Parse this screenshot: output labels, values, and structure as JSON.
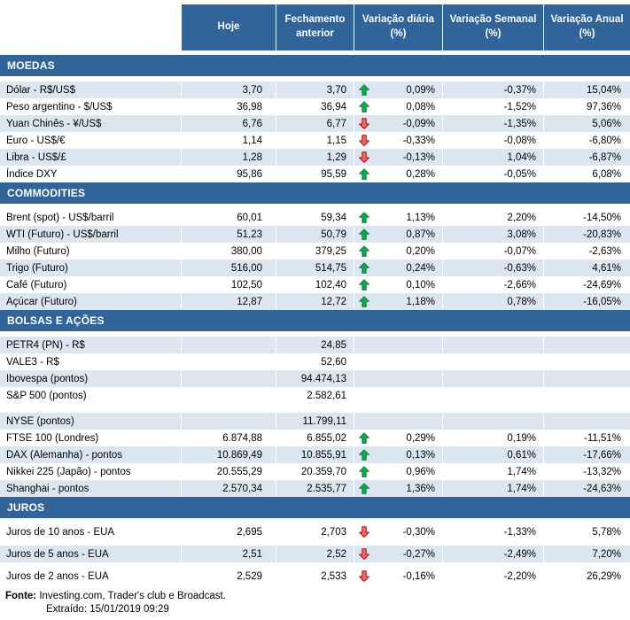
{
  "colors": {
    "header_blue": "#30649B",
    "row_shade": "#DCE6F1",
    "arrow_up_fill": "#00B050",
    "arrow_up_border": "#1E7B34",
    "arrow_down_fill": "#EF6A6A",
    "arrow_down_border": "#C00000"
  },
  "icons": {
    "up_arrow": "block-arrow-up-green",
    "down_arrow": "block-arrow-down-red"
  },
  "header": {
    "columns": [
      "Hoje",
      "Fechamento anterior",
      "Variação diária (%)",
      "Variação Semanal (%)",
      "Variação Anual (%)"
    ]
  },
  "sections": [
    {
      "title": "MOEDAS",
      "rows": [
        {
          "label": "Dólar - R$/US$",
          "hoje": "3,70",
          "fechamento": "3,70",
          "arrow": "up",
          "diaria": "0,09%",
          "semanal": "-0,37%",
          "anual": "15,04%",
          "shade": true
        },
        {
          "label": "Peso argentino - $/US$",
          "hoje": "36,98",
          "fechamento": "36,94",
          "arrow": "up",
          "diaria": "0,08%",
          "semanal": "-1,52%",
          "anual": "97,36%",
          "shade": false
        },
        {
          "label": "Yuan Chinês - ¥/US$",
          "hoje": "6,76",
          "fechamento": "6,77",
          "arrow": "down",
          "diaria": "-0,09%",
          "semanal": "-1,35%",
          "anual": "5,06%",
          "shade": true
        },
        {
          "label": "Euro - US$/€",
          "hoje": "1,14",
          "fechamento": "1,15",
          "arrow": "down",
          "diaria": "-0,33%",
          "semanal": "-0,08%",
          "anual": "-6,80%",
          "shade": false
        },
        {
          "label": "Libra - US$/£",
          "hoje": "1,28",
          "fechamento": "1,29",
          "arrow": "down",
          "diaria": "-0,13%",
          "semanal": "1,04%",
          "anual": "-6,87%",
          "shade": true
        },
        {
          "label": "Índice DXY",
          "hoje": "95,86",
          "fechamento": "95,59",
          "arrow": "up",
          "diaria": "0,28%",
          "semanal": "-0,05%",
          "anual": "6,08%",
          "shade": false
        }
      ]
    },
    {
      "title": "COMMODITIES",
      "rows": [
        {
          "label": "Brent (spot) - US$/barril",
          "hoje": "60,01",
          "fechamento": "59,34",
          "arrow": "up",
          "diaria": "1,13%",
          "semanal": "2,20%",
          "anual": "-14,50%",
          "shade": false
        },
        {
          "label": "WTI (Futuro) - US$/barril",
          "hoje": "51,23",
          "fechamento": "50,79",
          "arrow": "up",
          "diaria": "0,87%",
          "semanal": "3,08%",
          "anual": "-20,83%",
          "shade": true
        },
        {
          "label": "Milho (Futuro)",
          "hoje": "380,00",
          "fechamento": "379,25",
          "arrow": "up",
          "diaria": "0,20%",
          "semanal": "-0,07%",
          "anual": "-2,63%",
          "shade": false
        },
        {
          "label": "Trigo (Futuro)",
          "hoje": "516,00",
          "fechamento": "514,75",
          "arrow": "up",
          "diaria": "0,24%",
          "semanal": "-0,63%",
          "anual": "4,61%",
          "shade": true
        },
        {
          "label": "Café (Futuro)",
          "hoje": "102,50",
          "fechamento": "102,40",
          "arrow": "up",
          "diaria": "0,10%",
          "semanal": "-2,66%",
          "anual": "-24,69%",
          "shade": false
        },
        {
          "label": "Açúcar (Futuro)",
          "hoje": "12,87",
          "fechamento": "12,72",
          "arrow": "up",
          "diaria": "1,18%",
          "semanal": "0,78%",
          "anual": "-16,05%",
          "shade": true
        }
      ]
    },
    {
      "title": "BOLSAS E AÇÕES",
      "rows": [
        {
          "label": "PETR4 (PN) - R$",
          "hoje": "",
          "fechamento": "24,85",
          "arrow": null,
          "diaria": "",
          "semanal": "",
          "anual": "",
          "shade": true
        },
        {
          "label": "VALE3 - R$",
          "hoje": "",
          "fechamento": "52,60",
          "arrow": null,
          "diaria": "",
          "semanal": "",
          "anual": "",
          "shade": false
        },
        {
          "label": "Ibovespa (pontos)",
          "hoje": "",
          "fechamento": "94.474,13",
          "arrow": null,
          "diaria": "",
          "semanal": "",
          "anual": "",
          "shade": true
        },
        {
          "label": "S&P 500 (pontos)",
          "hoje": "",
          "fechamento": "2.582,61",
          "arrow": null,
          "diaria": "",
          "semanal": "",
          "anual": "",
          "shade": false,
          "gap_after": true
        },
        {
          "label": "NYSE (pontos)",
          "hoje": "",
          "fechamento": "11.799,11",
          "arrow": null,
          "diaria": "",
          "semanal": "",
          "anual": "",
          "shade": true
        },
        {
          "label": "FTSE 100 (Londres)",
          "hoje": "6.874,88",
          "fechamento": "6.855,02",
          "arrow": "up",
          "diaria": "0,29%",
          "semanal": "0,19%",
          "anual": "-11,51%",
          "shade": false
        },
        {
          "label": "DAX (Alemanha) - pontos",
          "hoje": "10.869,49",
          "fechamento": "10.855,91",
          "arrow": "up",
          "diaria": "0,13%",
          "semanal": "0,61%",
          "anual": "-17,66%",
          "shade": true
        },
        {
          "label": "Nikkei 225 (Japão) - pontos",
          "hoje": "20.555,29",
          "fechamento": "20.359,70",
          "arrow": "up",
          "diaria": "0,96%",
          "semanal": "1,74%",
          "anual": "-13,32%",
          "shade": false
        },
        {
          "label": "Shanghai - pontos",
          "hoje": "2.570,34",
          "fechamento": "2.535,77",
          "arrow": "up",
          "diaria": "1,36%",
          "semanal": "1,74%",
          "anual": "-24,63%",
          "shade": true
        }
      ]
    },
    {
      "title": "JUROS",
      "rows": [
        {
          "label": "Juros de 10 anos - EUA",
          "hoje": "2,695",
          "fechamento": "2,703",
          "arrow": "down",
          "diaria": "-0,30%",
          "semanal": "-1,33%",
          "anual": "5,78%",
          "shade": false
        },
        {
          "label": "Juros de 5 anos - EUA",
          "hoje": "2,51",
          "fechamento": "2,52",
          "arrow": "down",
          "diaria": "-0,27%",
          "semanal": "-2,49%",
          "anual": "7,20%",
          "shade": true
        },
        {
          "label": "Juros de 2 anos - EUA",
          "hoje": "2,529",
          "fechamento": "2,533",
          "arrow": "down",
          "diaria": "-0,16%",
          "semanal": "-2,20%",
          "anual": "26,29%",
          "shade": false
        }
      ]
    }
  ],
  "footer": {
    "source_label": "Fonte:",
    "source_text": "Investing.com, Trader's club e Broadcast.",
    "extracted_label": "Extraído:",
    "extracted_value": "15/01/2019 09:29"
  }
}
